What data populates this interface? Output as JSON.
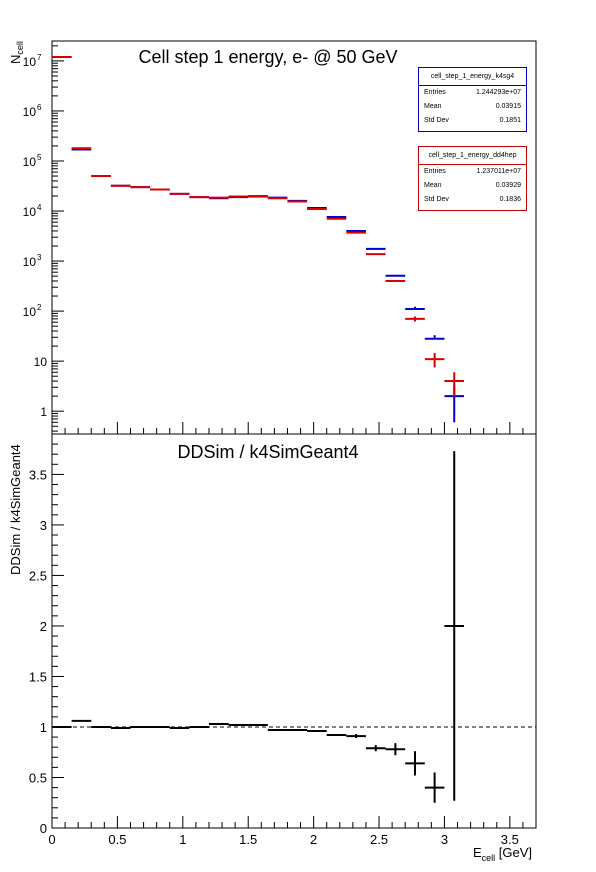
{
  "top": {
    "title": "Cell step 1 energy,  e- @ 50 GeV",
    "ylabel_main": "N",
    "ylabel_sub": "cell",
    "log_ticks": [
      {
        "v": 1,
        "t": "1",
        "sup": ""
      },
      {
        "v": 10,
        "t": "10",
        "sup": ""
      },
      {
        "v": 100,
        "t": "10",
        "sup": "2"
      },
      {
        "v": 1000,
        "t": "10",
        "sup": "3"
      },
      {
        "v": 10000,
        "t": "10",
        "sup": "4"
      },
      {
        "v": 100000,
        "t": "10",
        "sup": "5"
      },
      {
        "v": 1000000,
        "t": "10",
        "sup": "6"
      },
      {
        "v": 10000000,
        "t": "10",
        "sup": "7"
      }
    ]
  },
  "stats": [
    {
      "name": "cell_step_1_energy_k4sg4",
      "color": "#0000cc",
      "rows": [
        [
          "Entries",
          "1.244293e+07"
        ],
        [
          "Mean",
          "0.03915"
        ],
        [
          "Std Dev",
          "0.1851"
        ]
      ]
    },
    {
      "name": "cell_step_1_energy_dd4hep",
      "color": "#cc0000",
      "rows": [
        [
          "Entries",
          "1.237011e+07"
        ],
        [
          "Mean",
          "0.03929"
        ],
        [
          "Std Dev",
          "0.1836"
        ]
      ]
    }
  ],
  "bottom": {
    "title": "DDSim / k4SimGeant4",
    "ylabel": "DDSim / k4SimGeant4",
    "yticks": [
      "0",
      "0.5",
      "1",
      "1.5",
      "2",
      "2.5",
      "3",
      "3.5"
    ],
    "xlabel_main": "E",
    "xlabel_sub": "cell",
    "xlabel_unit": " [GeV]",
    "xticks": [
      "0",
      "0.5",
      "1",
      "1.5",
      "2",
      "2.5",
      "3",
      "3.5"
    ]
  },
  "chart_data": [
    {
      "type": "line",
      "title": "Cell step 1 energy,  e- @ 50 GeV",
      "xlabel": "E_cell [GeV]",
      "ylabel": "N_cell",
      "yscale": "log",
      "xlim": [
        0,
        3.7
      ],
      "ylim": [
        0.35,
        25000000
      ],
      "bin_width": 0.15,
      "series": [
        {
          "name": "cell_step_1_energy_k4sg4",
          "color": "#0000cc",
          "x": [
            0.075,
            0.225,
            0.375,
            0.525,
            0.675,
            0.825,
            0.975,
            1.125,
            1.275,
            1.425,
            1.575,
            1.725,
            1.875,
            2.025,
            2.175,
            2.325,
            2.475,
            2.625,
            2.775,
            2.925,
            3.075
          ],
          "y": [
            12000000,
            170000,
            50000,
            32000,
            30000,
            27000,
            22000,
            19000,
            18000,
            19000,
            19500,
            18500,
            16000,
            11500,
            7600,
            4000,
            1750,
            510,
            110,
            28,
            2
          ],
          "yerr_lo": [
            0,
            0,
            0,
            0,
            0,
            0,
            0,
            0,
            0,
            0,
            0,
            0,
            0,
            0,
            0,
            0,
            0,
            0,
            0,
            0,
            1.4
          ],
          "yerr_hi": [
            0,
            0,
            0,
            0,
            0,
            0,
            0,
            0,
            0,
            0,
            0,
            0,
            0,
            0,
            0,
            0,
            0,
            0,
            12,
            5,
            1.4
          ]
        },
        {
          "name": "cell_step_1_energy_dd4hep",
          "color": "#dd0000",
          "x": [
            0.075,
            0.225,
            0.375,
            0.525,
            0.675,
            0.825,
            0.975,
            1.125,
            1.275,
            1.425,
            1.575,
            1.725,
            1.875,
            2.025,
            2.175,
            2.325,
            2.475,
            2.625,
            2.775,
            2.925,
            3.075
          ],
          "y": [
            12000000,
            180000,
            50000,
            32000,
            30000,
            27000,
            22000,
            19000,
            18500,
            19500,
            20000,
            18000,
            15500,
            11000,
            7000,
            3700,
            1380,
            400,
            70,
            11,
            4
          ],
          "yerr_lo": [
            0,
            0,
            0,
            0,
            0,
            0,
            0,
            0,
            0,
            0,
            0,
            0,
            0,
            0,
            0,
            0,
            0,
            0,
            8,
            3.5,
            2
          ],
          "yerr_hi": [
            0,
            0,
            0,
            0,
            0,
            0,
            0,
            0,
            0,
            0,
            0,
            0,
            0,
            0,
            0,
            0,
            0,
            0,
            8,
            3.5,
            2
          ]
        }
      ]
    },
    {
      "type": "line",
      "title": "DDSim / k4SimGeant4",
      "xlabel": "E_cell [GeV]",
      "ylabel": "DDSim / k4SimGeant4",
      "xlim": [
        0,
        3.7
      ],
      "ylim": [
        0,
        3.9
      ],
      "reference_line": 1,
      "bin_width": 0.15,
      "series": [
        {
          "name": "",
          "color": "#000000",
          "x": [
            0.075,
            0.225,
            0.375,
            0.525,
            0.675,
            0.825,
            0.975,
            1.125,
            1.275,
            1.425,
            1.575,
            1.725,
            1.875,
            2.025,
            2.175,
            2.325,
            2.475,
            2.625,
            2.775,
            2.925,
            3.075
          ],
          "y": [
            1.0,
            1.06,
            1.0,
            0.99,
            1.0,
            1.0,
            0.99,
            1.0,
            1.03,
            1.02,
            1.02,
            0.97,
            0.97,
            0.96,
            0.92,
            0.91,
            0.79,
            0.78,
            0.64,
            0.4,
            2.0
          ],
          "yerr": [
            0,
            0,
            0,
            0,
            0,
            0,
            0,
            0,
            0,
            0,
            0,
            0,
            0,
            0,
            0,
            0.02,
            0.03,
            0.06,
            0.12,
            0.15,
            1.73
          ]
        }
      ]
    }
  ]
}
